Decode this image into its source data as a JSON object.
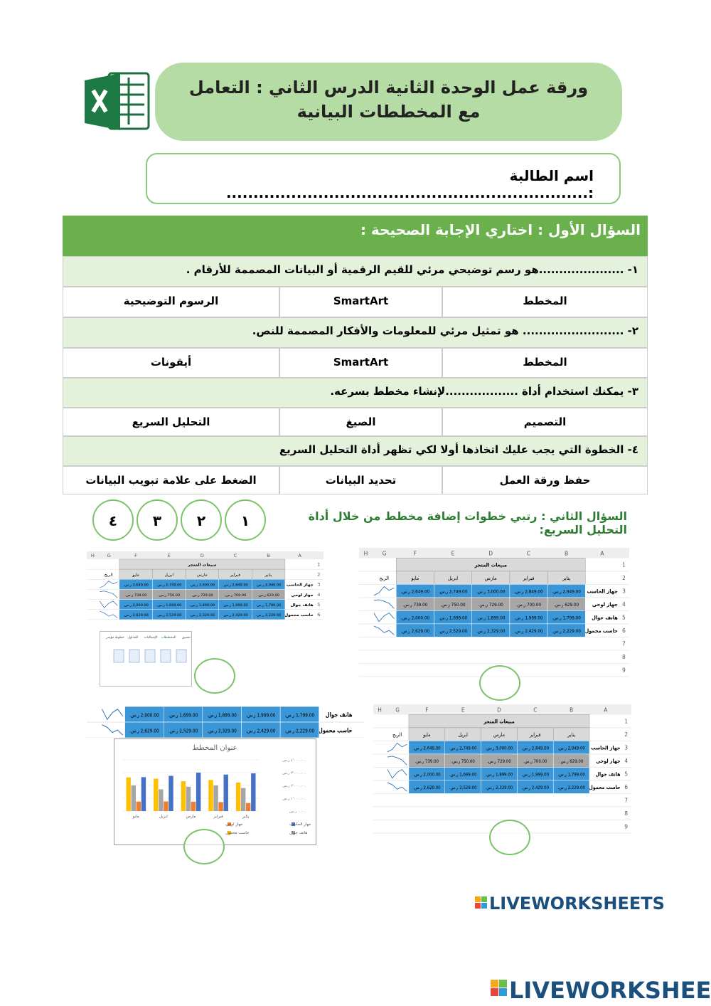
{
  "header": {
    "title": "ورقة عمل الوحدة الثانية الدرس الثاني : التعامل مع المخططات البيانية",
    "student_name": "اسم الطالبة :..................................................................."
  },
  "question1": {
    "title": "السؤال الأول : اختاري الإجابة الصحيحة :",
    "items": [
      {
        "question": "١- .....................هو رسم توضيحي مرئي للقيم الرقمية أو البيانات المصممة للأرقام .",
        "options": [
          "المخطط",
          "SmartArt",
          "الرسوم التوضيحية"
        ]
      },
      {
        "question": "٢- ......................... هو تمثيل مرئي للمعلومات والأفكار المصممة للنص.",
        "options": [
          "المخطط",
          "SmartArt",
          "أيقونات"
        ]
      },
      {
        "question": "٣- يمكنك استخدام أداة ..................لإنشاء مخطط بسرعه.",
        "options": [
          "التصميم",
          "الصيغ",
          "التحليل السريع"
        ]
      },
      {
        "question": "٤- الخطوة التي يجب عليك اتخاذها أولا لكي تظهر أداة التحليل السريع",
        "options": [
          "حفظ ورقة العمل",
          "تحديد البيانات",
          "الضغط على علامة تبويب البيانات"
        ]
      }
    ]
  },
  "question2": {
    "title": "السؤال الثاني : رتبي خطوات إضافة مخطط من خلال أداة التحليل السريع:",
    "order_labels": [
      "١",
      "٢",
      "٣",
      "٤"
    ]
  },
  "sales_sheet": {
    "columns": [
      "A",
      "B",
      "C",
      "D",
      "E",
      "F",
      "G",
      "H"
    ],
    "row_numbers": [
      1,
      2,
      3,
      4,
      5,
      6,
      7,
      8,
      9
    ],
    "title": "مبيعات المتجر",
    "months": [
      "يناير",
      "فبراير",
      "مارس",
      "ابريل",
      "مايو"
    ],
    "profit_header": "الربح",
    "rows": [
      {
        "label": "جهاز الحاسب",
        "values": [
          "2,949.00 ر.س.",
          "2,849.00 ر.س.",
          "3,000.00 ر.س.",
          "2,749.00 ر.س.",
          "2,649.00 ر.س."
        ]
      },
      {
        "label": "جهاز لوحي",
        "values": [
          "629.00 ر.س.",
          "700.00 ر.س.",
          "729.00 ر.س.",
          "750.00 ر.س.",
          "739.00 ر.س."
        ]
      },
      {
        "label": "هاتف جوال",
        "values": [
          "1,799.00 ر.س.",
          "1,999.00 ر.س.",
          "1,899.00 ر.س.",
          "1,699.00 ر.س.",
          "2,000.00 ر.س."
        ]
      },
      {
        "label": "حاسب محمول",
        "values": [
          "2,229.00 ر.س.",
          "2,429.00 ر.س.",
          "2,329.00 ر.س.",
          "2,529.00 ر.س.",
          "2,629.00 ر.س."
        ]
      }
    ]
  },
  "quick_analysis": {
    "tabs": [
      "تنسيق",
      "المخططات",
      "الإجماليات",
      "الجداول",
      "خطوط مؤشر"
    ]
  },
  "chart_screenshot": {
    "type": "bar",
    "title": "عنوان المخطط",
    "categories": [
      "يناير",
      "فبراير",
      "مارس",
      "ابريل",
      "مايو"
    ],
    "series": [
      {
        "name": "جهاز الحاسب",
        "color": "#4472c4",
        "values": [
          2949,
          2849,
          3000,
          2749,
          2649
        ]
      },
      {
        "name": "جهاز لوحي",
        "color": "#ed7d31",
        "values": [
          629,
          700,
          729,
          750,
          739
        ]
      },
      {
        "name": "هاتف جوال",
        "color": "#a5a5a5",
        "values": [
          1799,
          1999,
          1899,
          1699,
          2000
        ]
      },
      {
        "name": "حاسب محمول",
        "color": "#ffc000",
        "values": [
          2229,
          2429,
          2329,
          2529,
          2629
        ]
      }
    ],
    "ylim": [
      0,
      4000
    ],
    "yticks": [
      {
        "value": 0,
        "label": "٠.٠٠ ر.س."
      },
      {
        "value": 1000,
        "label": "١٬٠٠٠.٠٠ ر.س."
      },
      {
        "value": 2000,
        "label": "٢٬٠٠٠.٠٠ ر.س."
      },
      {
        "value": 3000,
        "label": "٣٬٠٠٠.٠٠ ر.س."
      },
      {
        "value": 4000,
        "label": "٤٬٠٠٠.٠٠ ر.س."
      }
    ]
  },
  "footer": {
    "logo": "LIVEWORKSHEETS"
  }
}
